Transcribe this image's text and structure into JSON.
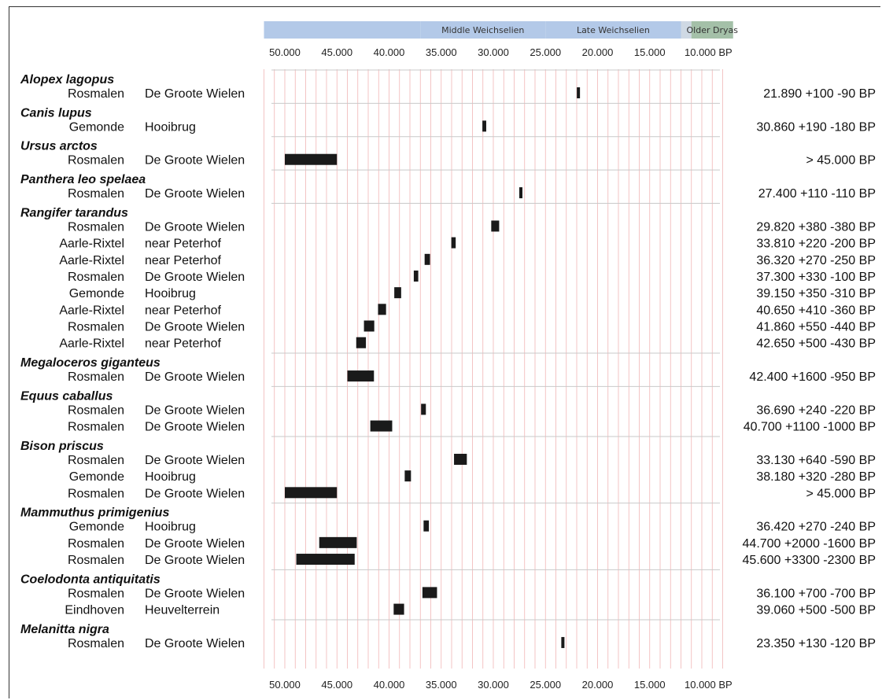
{
  "chart_data": {
    "type": "range-bar",
    "title": "",
    "x_axis": {
      "reversed": true,
      "xlim": [
        52000,
        7500
      ],
      "tick_values": [
        50000,
        45000,
        40000,
        35000,
        30000,
        25000,
        20000,
        15000,
        10000
      ],
      "tick_labels": [
        "50.000",
        "45.000",
        "40.000",
        "35.000",
        "30.000",
        "25.000",
        "20.000",
        "15.000",
        "10.000 BP"
      ],
      "minor_gridline_step": 1000,
      "gridline_color": "#f0b5b5"
    },
    "periods": [
      {
        "label": "",
        "start": 52000,
        "end": 37000,
        "color": "#b3c9e8"
      },
      {
        "label": "Middle Weichselien",
        "start": 37000,
        "end": 25000,
        "color": "#b3c9e8"
      },
      {
        "label": "Late Weichselien",
        "start": 25000,
        "end": 12000,
        "color": "#b3c9e8"
      },
      {
        "label": "",
        "start": 12000,
        "end": 11000,
        "color": "#cfd9e4"
      },
      {
        "label": "Older Dryas",
        "start": 11000,
        "end": 7000,
        "color": "#a4c0a8"
      }
    ],
    "bar_color": "#1a1a1a",
    "groups": [
      {
        "species": "Alopex lagopus",
        "samples": [
          {
            "site": "Rosmalen",
            "locality": "De Groote Wielen",
            "label": "21.890 +100 -90 BP",
            "from": 21990,
            "to": 21800
          }
        ]
      },
      {
        "species": "Canis lupus",
        "samples": [
          {
            "site": "Gemonde",
            "locality": "Hooibrug",
            "label": "30.860 +190 -180 BP",
            "from": 31050,
            "to": 30680
          }
        ]
      },
      {
        "species": "Ursus arctos",
        "samples": [
          {
            "site": "Rosmalen",
            "locality": "De Groote Wielen",
            "label": "> 45.000 BP",
            "from": 50000,
            "to": 45000
          }
        ]
      },
      {
        "species": "Panthera leo spelaea",
        "samples": [
          {
            "site": "Rosmalen",
            "locality": "De Groote Wielen",
            "label": "27.400 +110 -110 BP",
            "from": 27510,
            "to": 27290
          }
        ]
      },
      {
        "species": "Rangifer tarandus",
        "samples": [
          {
            "site": "Rosmalen",
            "locality": "De Groote Wielen",
            "label": "29.820 +380 -380 BP",
            "from": 30200,
            "to": 29440
          },
          {
            "site": "Aarle-Rixtel",
            "locality": "near Peterhof",
            "label": "33.810 +220 -200 BP",
            "from": 34030,
            "to": 33610
          },
          {
            "site": "Aarle-Rixtel",
            "locality": "near Peterhof",
            "label": "36.320 +270 -250 BP",
            "from": 36590,
            "to": 36070
          },
          {
            "site": "Rosmalen",
            "locality": "De Groote Wielen",
            "label": "37.300 +330 -100 BP",
            "from": 37630,
            "to": 37200
          },
          {
            "site": "Gemonde",
            "locality": "Hooibrug",
            "label": "39.150 +350 -310 BP",
            "from": 39500,
            "to": 38840
          },
          {
            "site": "Aarle-Rixtel",
            "locality": "near Peterhof",
            "label": "40.650 +410 -360 BP",
            "from": 41060,
            "to": 40290
          },
          {
            "site": "Rosmalen",
            "locality": "De Groote Wielen",
            "label": "41.860 +550 -440 BP",
            "from": 42410,
            "to": 41420
          },
          {
            "site": "Aarle-Rixtel",
            "locality": "near Peterhof",
            "label": "42.650 +500 -430 BP",
            "from": 43150,
            "to": 42220
          }
        ]
      },
      {
        "species": "Megaloceros giganteus",
        "samples": [
          {
            "site": "Rosmalen",
            "locality": "De Groote Wielen",
            "label": "42.400 +1600 -950 BP",
            "from": 44000,
            "to": 41450
          }
        ]
      },
      {
        "species": "Equus caballus",
        "samples": [
          {
            "site": "Rosmalen",
            "locality": "De Groote Wielen",
            "label": "36.690 +240 -220 BP",
            "from": 36930,
            "to": 36470
          },
          {
            "site": "Rosmalen",
            "locality": "De Groote Wielen",
            "label": "40.700 +1100 -1000 BP",
            "from": 41800,
            "to": 39700
          }
        ]
      },
      {
        "species": "Bison priscus",
        "samples": [
          {
            "site": "Rosmalen",
            "locality": "De Groote Wielen",
            "label": "33.130 +640 -590 BP",
            "from": 33770,
            "to": 32540
          },
          {
            "site": "Gemonde",
            "locality": "Hooibrug",
            "label": "38.180 +320 -280 BP",
            "from": 38500,
            "to": 37900
          },
          {
            "site": "Rosmalen",
            "locality": "De Groote Wielen",
            "label": "> 45.000 BP",
            "from": 50000,
            "to": 45000
          }
        ]
      },
      {
        "species": "Mammuthus primigenius",
        "samples": [
          {
            "site": "Gemonde",
            "locality": "Hooibrug",
            "label": "36.420 +270 -240 BP",
            "from": 36690,
            "to": 36180
          },
          {
            "site": "Rosmalen",
            "locality": "De Groote Wielen",
            "label": "44.700 +2000 -1600 BP",
            "from": 46700,
            "to": 43100
          },
          {
            "site": "Rosmalen",
            "locality": "De Groote Wielen",
            "label": "45.600 +3300 -2300 BP",
            "from": 48900,
            "to": 43300
          }
        ]
      },
      {
        "species": "Coelodonta antiquitatis",
        "samples": [
          {
            "site": "Rosmalen",
            "locality": "De Groote Wielen",
            "label": "36.100 +700 -700 BP",
            "from": 36800,
            "to": 35400
          },
          {
            "site": "Eindhoven",
            "locality": "Heuvelterrein",
            "label": "39.060 +500 -500 BP",
            "from": 39560,
            "to": 38560
          }
        ]
      },
      {
        "species": "Melanitta nigra",
        "samples": [
          {
            "site": "Rosmalen",
            "locality": "De Groote Wielen",
            "label": "23.350 +130 -120 BP",
            "from": 23480,
            "to": 23230
          }
        ]
      }
    ]
  }
}
